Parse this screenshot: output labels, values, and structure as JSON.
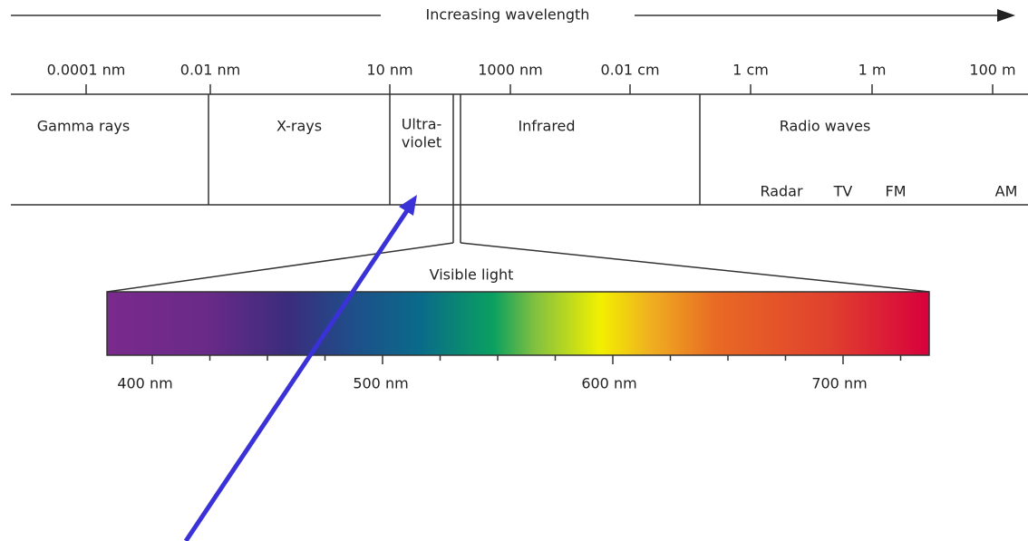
{
  "title": "Increasing wavelength",
  "scale_labels": [
    "0.0001 nm",
    "0.01 nm",
    "10 nm",
    "1000 nm",
    "0.01 cm",
    "1 cm",
    "1 m",
    "100 m"
  ],
  "regions": [
    [
      "Gamma rays"
    ],
    [
      "X-rays"
    ],
    [
      "Ultra-",
      "violet"
    ],
    [
      "Infrared"
    ],
    [
      "Radio waves"
    ]
  ],
  "radio_bands": [
    "Radar",
    "TV",
    "FM",
    "AM"
  ],
  "visible": {
    "title": "Visible light",
    "labels": [
      "400 nm",
      "500 nm",
      "600 nm",
      "700 nm"
    ]
  }
}
